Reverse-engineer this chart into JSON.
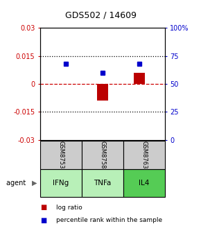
{
  "title": "GDS502 / 14609",
  "samples": [
    "GSM8753",
    "GSM8758",
    "GSM8763"
  ],
  "agents": [
    "IFNg",
    "TNFa",
    "IL4"
  ],
  "agent_colors": [
    "#b8f0b8",
    "#b8f0b8",
    "#55cc55"
  ],
  "log_ratios": [
    0.0,
    -0.009,
    0.006
  ],
  "percentile_ranks": [
    68,
    60,
    68
  ],
  "ylim_left": [
    -0.03,
    0.03
  ],
  "ylim_right": [
    0,
    100
  ],
  "left_yticks": [
    -0.03,
    -0.015,
    0,
    0.015,
    0.03
  ],
  "right_yticks": [
    0,
    25,
    50,
    75,
    100
  ],
  "right_yticklabels": [
    "0",
    "25",
    "50",
    "75",
    "100%"
  ],
  "bar_color": "#bb0000",
  "dot_color": "#0000cc",
  "sample_bg": "#cccccc",
  "zero_line_color": "#cc0000",
  "dotted_color": "#000000",
  "title_fontsize": 9
}
